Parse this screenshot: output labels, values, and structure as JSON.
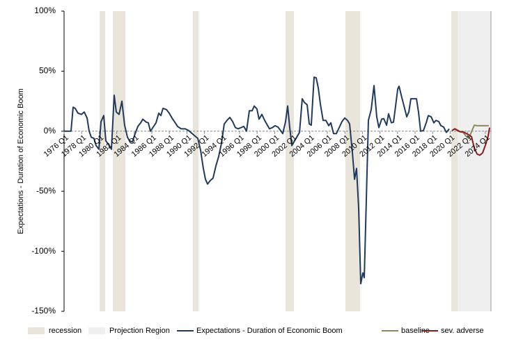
{
  "chart_data": {
    "type": "line",
    "y_label": "Expectations - Duration of Economic Boom",
    "xlim": [
      1976,
      2024.65
    ],
    "xticks": [
      {
        "value": 1976,
        "label": "1976 Q1"
      },
      {
        "value": 1978,
        "label": "1978 Q1"
      },
      {
        "value": 1980,
        "label": "1980 Q1"
      },
      {
        "value": 1982,
        "label": "1982 Q1"
      },
      {
        "value": 1984,
        "label": "1984 Q1"
      },
      {
        "value": 1986,
        "label": "1986 Q1"
      },
      {
        "value": 1988,
        "label": "1988 Q1"
      },
      {
        "value": 1990,
        "label": "1990 Q1"
      },
      {
        "value": 1992,
        "label": "1992 Q1"
      },
      {
        "value": 1994,
        "label": "1994 Q1"
      },
      {
        "value": 1996,
        "label": "1996 Q1"
      },
      {
        "value": 1998,
        "label": "1998 Q1"
      },
      {
        "value": 2000,
        "label": "2000 Q1"
      },
      {
        "value": 2002,
        "label": "2002 Q1"
      },
      {
        "value": 2004,
        "label": "2004 Q1"
      },
      {
        "value": 2006,
        "label": "2006 Q1"
      },
      {
        "value": 2008,
        "label": "2008 Q1"
      },
      {
        "value": 2010,
        "label": "2010 Q1"
      },
      {
        "value": 2012,
        "label": "2012 Q1"
      },
      {
        "value": 2014,
        "label": "2014 Q1"
      },
      {
        "value": 2016,
        "label": "2016 Q1"
      },
      {
        "value": 2018,
        "label": "2018 Q1"
      },
      {
        "value": 2020,
        "label": "2020 Q1"
      },
      {
        "value": 2022,
        "label": "2022 Q1"
      },
      {
        "value": 2024,
        "label": "2024 Q1"
      }
    ],
    "ylim": [
      -150,
      100
    ],
    "yticks": [
      {
        "value": -150,
        "label": "-150%"
      },
      {
        "value": -100,
        "label": "-100%"
      },
      {
        "value": -50,
        "label": "-50%"
      },
      {
        "value": 0,
        "label": "0%"
      },
      {
        "value": 50,
        "label": "50%"
      },
      {
        "value": 100,
        "label": "100%"
      }
    ],
    "bands": [
      {
        "name": "recession",
        "color": "#e9e5da",
        "ranges": [
          [
            1980.05,
            1980.68
          ],
          [
            1981.56,
            1982.98
          ],
          [
            1990.68,
            1991.32
          ],
          [
            2001.24,
            2002.19
          ],
          [
            2008.06,
            2009.73
          ],
          [
            2020.13,
            2020.84
          ]
        ]
      },
      {
        "name": "Projection Region",
        "color": "#efefef",
        "ranges": [
          [
            2020.84,
            2024.65
          ]
        ]
      }
    ],
    "series": [
      {
        "name": "Expectations - Duration of Economic Boom",
        "color": "#1f3a5c",
        "x": [
          1976.0,
          1976.79,
          1977.03,
          1977.27,
          1977.59,
          1977.98,
          1978.3,
          1978.62,
          1978.86,
          1979.1,
          1979.41,
          1979.65,
          1979.97,
          1980.21,
          1980.52,
          1980.76,
          1981.16,
          1981.4,
          1981.71,
          1981.95,
          1982.27,
          1982.59,
          1982.9,
          1983.22,
          1983.46,
          1983.78,
          1984.1,
          1984.41,
          1984.73,
          1984.97,
          1985.37,
          1985.6,
          1985.84,
          1986.16,
          1986.48,
          1986.79,
          1987.03,
          1987.27,
          1987.67,
          1987.98,
          1988.3,
          1988.62,
          1988.94,
          1989.33,
          1989.81,
          1990.21,
          1990.6,
          1990.92,
          1991.24,
          1991.56,
          1991.87,
          1992.11,
          1992.35,
          1992.67,
          1992.98,
          1993.3,
          1993.62,
          1993.94,
          1994.25,
          1994.57,
          1994.89,
          1995.21,
          1995.52,
          1995.84,
          1996.16,
          1996.48,
          1996.79,
          1997.11,
          1997.43,
          1997.67,
          1997.98,
          1998.22,
          1998.54,
          1998.86,
          1999.17,
          1999.41,
          1999.73,
          2000.05,
          2000.37,
          2000.68,
          2000.92,
          2001.24,
          2001.48,
          2001.71,
          2001.95,
          2002.19,
          2002.51,
          2002.83,
          2003.14,
          2003.38,
          2003.7,
          2003.94,
          2004.17,
          2004.49,
          2004.73,
          2004.97,
          2005.21,
          2005.52,
          2005.84,
          2006.16,
          2006.4,
          2006.71,
          2007.03,
          2007.35,
          2007.67,
          2007.98,
          2008.3,
          2008.54,
          2008.86,
          2009.1,
          2009.33,
          2009.57,
          2009.81,
          2010.05,
          2010.21,
          2010.44,
          2010.68,
          2011.0,
          2011.32,
          2011.63,
          2011.87,
          2012.19,
          2012.43,
          2012.75,
          2012.98,
          2013.3,
          2013.54,
          2013.78,
          2014.02,
          2014.17,
          2014.49,
          2014.81,
          2015.05,
          2015.29,
          2015.52,
          2015.84,
          2016.16,
          2016.4,
          2016.63,
          2016.95,
          2017.27,
          2017.51,
          2017.83,
          2018.14,
          2018.38,
          2018.7,
          2018.94,
          2019.25,
          2019.57,
          2019.89
        ],
        "values": [
          0,
          0,
          20,
          19,
          15,
          14,
          16,
          11,
          0,
          -5,
          -6,
          -12,
          -15,
          8,
          13,
          -8,
          -12,
          -15,
          30,
          16,
          14,
          25,
          5,
          -5,
          -8,
          -9,
          -2,
          4,
          7,
          10,
          7.5,
          7,
          0,
          3.5,
          7,
          15,
          13,
          19,
          18,
          15,
          11,
          7.5,
          4,
          2,
          2,
          0.5,
          -2,
          -4,
          -6,
          -16,
          -31,
          -40,
          -44,
          -41,
          -39,
          -29,
          -21,
          -10,
          6,
          9,
          11.5,
          8,
          3,
          2,
          3,
          4,
          0,
          17,
          17,
          21,
          18.5,
          10,
          14,
          9,
          5,
          2,
          3,
          4.6,
          3.5,
          0.5,
          -2,
          8,
          21,
          3.5,
          -12,
          -9,
          -5,
          -1,
          27,
          24,
          22,
          6,
          5,
          45,
          44.5,
          36,
          22.5,
          9,
          9,
          4.6,
          7,
          -2,
          -2,
          3,
          8,
          11,
          9,
          6,
          -18,
          -40,
          -31,
          -64,
          -127,
          -118,
          -122,
          -58,
          9,
          18,
          38,
          12,
          3,
          10,
          10.5,
          5,
          14.5,
          7,
          7.5,
          21,
          35,
          37.5,
          28,
          19,
          12,
          16,
          27,
          27,
          27,
          15.5,
          0,
          0.5,
          7,
          13,
          12,
          7,
          9,
          8,
          4.6,
          3.5,
          -1,
          2
        ]
      },
      {
        "name": "baseline",
        "color": "#8c8a5c",
        "x": [
          2020.21,
          2020.52,
          2020.84,
          2021.16,
          2021.48,
          2021.79,
          2022.11,
          2022.43,
          2022.75,
          2023.06,
          2023.38,
          2023.86,
          2024.4
        ],
        "values": [
          0.5,
          2,
          1,
          -0.5,
          -1,
          -4,
          -6,
          -0.5,
          5,
          4.6,
          4.6,
          4.6,
          4.6
        ]
      },
      {
        "name": "sev. adverse",
        "color": "#8b1a1a",
        "x": [
          2020.21,
          2020.52,
          2020.84,
          2021.16,
          2021.48,
          2021.79,
          2022.11,
          2022.43,
          2022.75,
          2023.06,
          2023.38,
          2023.7,
          2024.02,
          2024.33,
          2024.49
        ],
        "values": [
          0.5,
          2,
          0.5,
          -0.5,
          -0.5,
          -1.7,
          -3,
          -4.6,
          -14,
          -19,
          -20,
          -18,
          -11.5,
          -4,
          3
        ]
      }
    ]
  }
}
